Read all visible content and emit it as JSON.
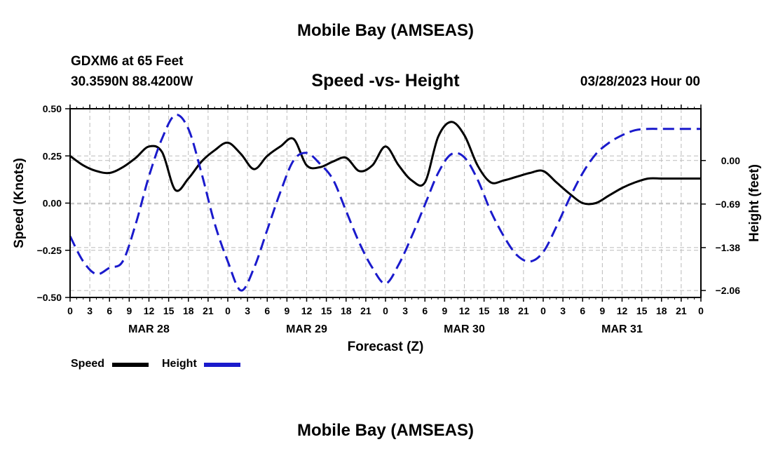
{
  "page_title_top": "Mobile Bay (AMSEAS)",
  "page_title_bottom": "Mobile Bay (AMSEAS)",
  "station": "GDXM6 at 65 Feet",
  "coordinates": "30.3590N  88.4200W",
  "datetime": "03/28/2023 Hour 00",
  "legend": {
    "speed_label": "Speed",
    "height_label": "Height"
  },
  "colors": {
    "speed": "#000000",
    "height": "#1a1acc",
    "grid": "#bbbbbb"
  },
  "chart_data": {
    "type": "line",
    "title": "Speed -vs- Height",
    "xlabel": "Forecast (Z)",
    "ylabel": "Speed (Knots)",
    "ylabel_right": "Height (feet)",
    "xlim": [
      0,
      96
    ],
    "ylim": [
      -0.5,
      0.5
    ],
    "ylim_right": [
      -2.17,
      0.82
    ],
    "x_tick_values": [
      0,
      3,
      6,
      9,
      12,
      15,
      18,
      21,
      24,
      27,
      30,
      33,
      36,
      39,
      42,
      45,
      48,
      51,
      54,
      57,
      60,
      63,
      66,
      69,
      72,
      75,
      78,
      81,
      84,
      87,
      90,
      93,
      96
    ],
    "x_tick_labels": [
      "0",
      "3",
      "6",
      "9",
      "12",
      "15",
      "18",
      "21",
      "0",
      "3",
      "6",
      "9",
      "12",
      "15",
      "18",
      "21",
      "0",
      "3",
      "6",
      "9",
      "12",
      "15",
      "18",
      "21",
      "0",
      "3",
      "6",
      "9",
      "12",
      "15",
      "18",
      "21",
      "0"
    ],
    "date_labels": [
      {
        "hour": 12,
        "label": "MAR 28"
      },
      {
        "hour": 36,
        "label": "MAR 29"
      },
      {
        "hour": 60,
        "label": "MAR 30"
      },
      {
        "hour": 84,
        "label": "MAR 31"
      }
    ],
    "y_tick_values": [
      -0.5,
      -0.25,
      0.0,
      0.25,
      0.5
    ],
    "y_tick_labels": [
      "−0.50",
      "−0.25",
      "0.00",
      "0.25",
      "0.50"
    ],
    "y_right_tick_values": [
      0.0,
      -0.69,
      -1.38,
      -2.06
    ],
    "y_right_tick_labels": [
      "0.00",
      "−0.69",
      "−1.38",
      "−2.06"
    ],
    "grid": true,
    "series": [
      {
        "name": "Speed",
        "axis": "left",
        "style": "solid",
        "x": [
          0,
          2,
          4,
          6,
          8,
          10,
          12,
          14,
          16,
          18,
          20,
          22,
          24,
          26,
          28,
          30,
          32,
          34,
          36,
          38,
          40,
          42,
          44,
          46,
          48,
          50,
          52,
          54,
          56,
          58,
          60,
          62,
          64,
          66,
          68,
          70,
          72,
          74,
          76,
          78,
          80,
          82,
          84,
          86,
          88,
          90,
          92,
          94,
          96
        ],
        "y": [
          0.25,
          0.2,
          0.17,
          0.16,
          0.19,
          0.24,
          0.3,
          0.27,
          0.07,
          0.13,
          0.22,
          0.28,
          0.32,
          0.26,
          0.18,
          0.25,
          0.3,
          0.34,
          0.2,
          0.19,
          0.22,
          0.24,
          0.17,
          0.2,
          0.3,
          0.2,
          0.12,
          0.11,
          0.35,
          0.43,
          0.36,
          0.2,
          0.11,
          0.12,
          0.14,
          0.16,
          0.17,
          0.11,
          0.05,
          0.0,
          0.0,
          0.04,
          0.08,
          0.11,
          0.13,
          0.13,
          0.13,
          0.13,
          0.13
        ]
      },
      {
        "name": "Height",
        "axis": "right",
        "style": "dashed",
        "x": [
          0,
          2,
          4,
          6,
          8,
          10,
          12,
          14,
          16,
          18,
          20,
          22,
          24,
          26,
          28,
          30,
          32,
          34,
          36,
          38,
          40,
          42,
          44,
          46,
          48,
          50,
          52,
          54,
          56,
          58,
          60,
          62,
          64,
          66,
          68,
          70,
          72,
          74,
          76,
          78,
          80,
          82,
          84,
          86,
          88,
          90,
          92,
          94,
          96
        ],
        "y": [
          -1.2,
          -1.6,
          -1.8,
          -1.7,
          -1.6,
          -1.0,
          -0.25,
          0.35,
          0.72,
          0.5,
          -0.2,
          -1.0,
          -1.6,
          -2.06,
          -1.7,
          -1.1,
          -0.5,
          0.0,
          0.12,
          -0.05,
          -0.3,
          -0.8,
          -1.3,
          -1.7,
          -1.95,
          -1.65,
          -1.2,
          -0.7,
          -0.2,
          0.1,
          0.05,
          -0.3,
          -0.8,
          -1.2,
          -1.5,
          -1.6,
          -1.45,
          -1.05,
          -0.6,
          -0.2,
          0.1,
          0.28,
          0.4,
          0.48,
          0.5,
          0.5,
          0.5,
          0.5,
          0.5
        ]
      }
    ]
  }
}
